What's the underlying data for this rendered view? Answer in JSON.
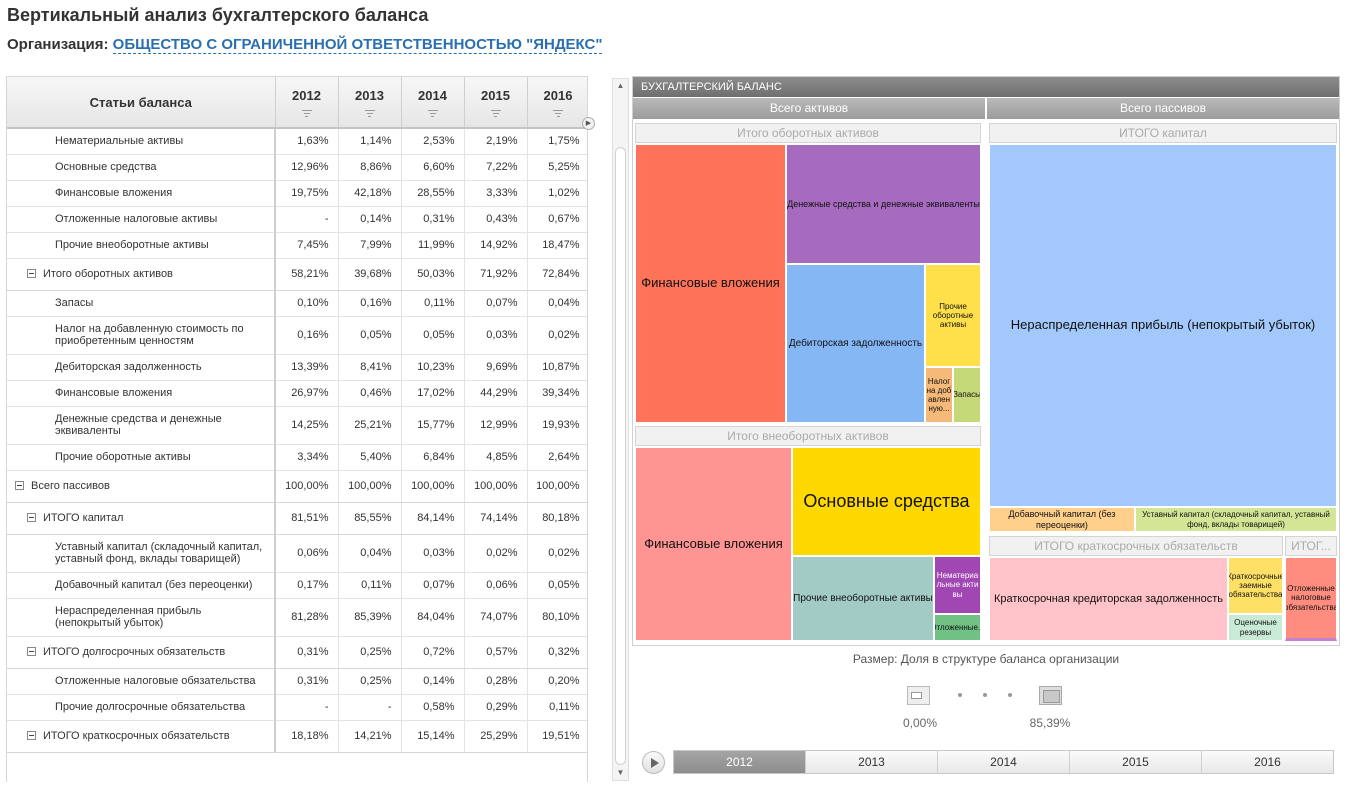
{
  "page": {
    "title": "Вертикальный анализ бухгалтерского баланса",
    "org_label": "Организация:",
    "org_name": "ОБЩЕСТВО С ОГРАНИЧЕННОЙ ОТВЕТСТВЕННОСТЬЮ \"ЯНДЕКС\""
  },
  "table": {
    "header_name": "Статьи баланса",
    "years": [
      "2012",
      "2013",
      "2014",
      "2015",
      "2016"
    ],
    "rows": [
      {
        "name": "Нематериальные активы",
        "v": [
          "1,63%",
          "1,14%",
          "2,53%",
          "2,19%",
          "1,75%"
        ]
      },
      {
        "name": "Основные средства",
        "v": [
          "12,96%",
          "8,86%",
          "6,60%",
          "7,22%",
          "5,25%"
        ]
      },
      {
        "name": "Финансовые вложения",
        "v": [
          "19,75%",
          "42,18%",
          "28,55%",
          "3,33%",
          "1,02%"
        ]
      },
      {
        "name": "Отложенные налоговые активы",
        "v": [
          "-",
          "0,14%",
          "0,31%",
          "0,43%",
          "0,67%"
        ]
      },
      {
        "name": "Прочие внеоборотные активы",
        "v": [
          "7,45%",
          "7,99%",
          "11,99%",
          "14,92%",
          "18,47%"
        ]
      },
      {
        "name": "Итого оборотных активов",
        "v": [
          "58,21%",
          "39,68%",
          "50,03%",
          "71,92%",
          "72,84%"
        ]
      },
      {
        "name": "Запасы",
        "v": [
          "0,10%",
          "0,16%",
          "0,11%",
          "0,07%",
          "0,04%"
        ]
      },
      {
        "name": "Налог на добавленную стоимость по приобретенным ценностям",
        "v": [
          "0,16%",
          "0,05%",
          "0,05%",
          "0,03%",
          "0,02%"
        ]
      },
      {
        "name": "Дебиторская задолженность",
        "v": [
          "13,39%",
          "8,41%",
          "10,23%",
          "9,69%",
          "10,87%"
        ]
      },
      {
        "name": "Финансовые вложения",
        "v": [
          "26,97%",
          "0,46%",
          "17,02%",
          "44,29%",
          "39,34%"
        ]
      },
      {
        "name": "Денежные средства и денежные эквиваленты",
        "v": [
          "14,25%",
          "25,21%",
          "15,77%",
          "12,99%",
          "19,93%"
        ]
      },
      {
        "name": "Прочие оборотные активы",
        "v": [
          "3,34%",
          "5,40%",
          "6,84%",
          "4,85%",
          "2,64%"
        ]
      },
      {
        "name": "Всего пассивов",
        "v": [
          "100,00%",
          "100,00%",
          "100,00%",
          "100,00%",
          "100,00%"
        ]
      },
      {
        "name": "ИТОГО капитал",
        "v": [
          "81,51%",
          "85,55%",
          "84,14%",
          "74,14%",
          "80,18%"
        ]
      },
      {
        "name": "Уставный капитал (складочный капитал, уставный фонд, вклады товарищей)",
        "v": [
          "0,06%",
          "0,04%",
          "0,03%",
          "0,02%",
          "0,02%"
        ]
      },
      {
        "name": "Добавочный капитал (без переоценки)",
        "v": [
          "0,17%",
          "0,11%",
          "0,07%",
          "0,06%",
          "0,05%"
        ]
      },
      {
        "name": "Нераспределенная прибыль (непокрытый убыток)",
        "v": [
          "81,28%",
          "85,39%",
          "84,04%",
          "74,07%",
          "80,10%"
        ]
      },
      {
        "name": "ИТОГО долгосрочных обязательств",
        "v": [
          "0,31%",
          "0,25%",
          "0,72%",
          "0,57%",
          "0,32%"
        ]
      },
      {
        "name": "Отложенные налоговые обязательства",
        "v": [
          "0,31%",
          "0,25%",
          "0,14%",
          "0,28%",
          "0,20%"
        ]
      },
      {
        "name": "Прочие долгосрочные обязательства",
        "v": [
          "-",
          "-",
          "0,58%",
          "0,29%",
          "0,11%"
        ]
      },
      {
        "name": "ИТОГО краткосрочных обязательств",
        "v": [
          "18,18%",
          "14,21%",
          "15,14%",
          "25,29%",
          "19,51%"
        ]
      }
    ]
  },
  "treemap": {
    "title": "БУХГАЛТЕРСКИЙ БАЛАНС",
    "assets_header": "Всего активов",
    "liabilities_header": "Всего пассивов",
    "current_assets_header": "Итого оборотных активов",
    "noncurrent_assets_header": "Итого внеоборотных активов",
    "capital_header": "ИТОГО капитал",
    "short_term_header": "ИТОГО краткосрочных обязательств",
    "tiny_header": "ИТОГ...",
    "cells": {
      "ca_fin": "Финансовые вложения",
      "ca_cash": "Денежные средства и денежные эквиваленты",
      "ca_receivables": "Дебиторская задолженность",
      "ca_other": "Прочие оборотные активы",
      "ca_vat": "Налог на добавленную...",
      "ca_stock": "Запасы",
      "nca_fin": "Финансовые вложения",
      "nca_fixed": "Основные средства",
      "nca_other": "Прочие внеоборотные активы",
      "nca_intangible": "Нематериальные активы",
      "nca_deferred": "Отложенные...",
      "cap_retained": "Нераспределенная прибыль (непокрытый убыток)",
      "cap_additional": "Добавочный капитал (без переоценки)",
      "cap_charter": "Уставный капитал (складочный капитал, уставный фонд, вклады товарищей)",
      "st_payables": "Краткосрочная кредиторская задолженность",
      "st_borrowings": "Краткосрочные заемные обязательства",
      "st_reserves": "Оценочные резервы",
      "lt_deferred": "Отложенные налоговые обязательства"
    },
    "colors": {
      "ca_fin": "#ff735a",
      "ca_cash": "#a66bbf",
      "ca_receivables": "#86b7f5",
      "ca_other": "#ffe04a",
      "ca_vat": "#f5b97a",
      "ca_stock": "#c6d978",
      "nca_fin": "#ff9592",
      "nca_fixed": "#ffd800",
      "nca_other": "#a2cbc6",
      "nca_intangible": "#a147b3",
      "nca_deferred": "#71c184",
      "cap_retained": "#a3c8fb",
      "cap_additional": "#ffcf8c",
      "cap_charter": "#d2e695",
      "st_payables": "#ffc3c9",
      "st_borrowings": "#ffe066",
      "st_reserves": "#c9ead7",
      "lt_deferred": "#ff8d7f"
    }
  },
  "legend": {
    "size_label": "Размер: Доля в структуре баланса организации",
    "min": "0,00%",
    "max": "85,39%"
  },
  "timeline": {
    "years": [
      "2012",
      "2013",
      "2014",
      "2015",
      "2016"
    ],
    "active": "2012"
  }
}
